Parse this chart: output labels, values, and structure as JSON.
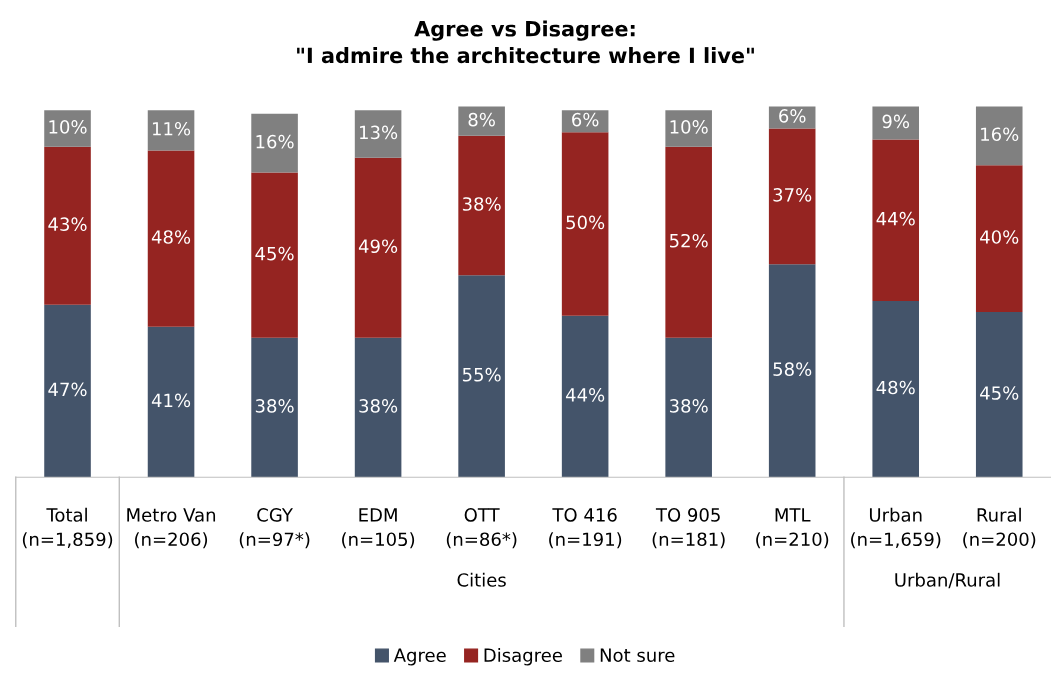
{
  "chart_data": {
    "type": "bar",
    "stacked": true,
    "legend": "bottom",
    "grid": false,
    "title": "Agree vs Disagree:\n\"I admire the architecture where I live\"",
    "categories": [
      "Total\n(n=1,859)",
      "Metro Van\n(n=206)",
      "CGY\n(n=97*)",
      "EDM\n(n=105)",
      "OTT\n(n=86*)",
      "TO 416\n(n=191)",
      "TO 905\n(n=181)",
      "MTL\n(n=210)",
      "Urban\n(n=1,659)",
      "Rural\n(n=200)"
    ],
    "series": [
      {
        "name": "Agree",
        "color": "#44546a",
        "values": [
          47,
          41,
          38,
          38,
          55,
          44,
          38,
          58,
          48,
          45
        ],
        "value_labels": [
          "47%",
          "41%",
          "38%",
          "38%",
          "55%",
          "44%",
          "38%",
          "58%",
          "48%",
          "45%"
        ]
      },
      {
        "name": "Disagree",
        "color": "#952421",
        "values": [
          43,
          48,
          45,
          49,
          38,
          50,
          52,
          37,
          44,
          40
        ],
        "value_labels": [
          "43%",
          "48%",
          "45%",
          "49%",
          "38%",
          "50%",
          "52%",
          "37%",
          "44%",
          "40%"
        ]
      },
      {
        "name": "Not sure",
        "color": "#808080",
        "values": [
          10,
          11,
          16,
          13,
          8,
          6,
          10,
          6,
          9,
          16
        ],
        "value_labels": [
          "10%",
          "11%",
          "16%",
          "13%",
          "8%",
          "6%",
          "10%",
          "6%",
          "9%",
          "16%"
        ]
      }
    ],
    "annotations": [
      "Cities",
      "Urban/Rural"
    ]
  }
}
